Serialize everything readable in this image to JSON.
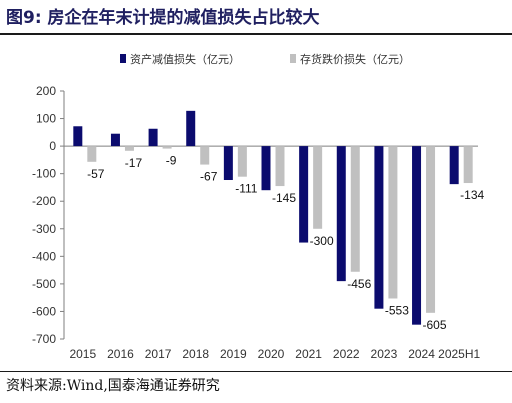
{
  "header": {
    "title": "图9:  房企在年末计提的减值损失占比较大"
  },
  "footer": {
    "source": "资料来源:Wind,国泰海通证券研究"
  },
  "chart_data": {
    "type": "bar",
    "categories": [
      "2015",
      "2016",
      "2017",
      "2018",
      "2019",
      "2020",
      "2021",
      "2022",
      "2023",
      "2024",
      "2025H1"
    ],
    "series": [
      {
        "name": "资产减值损失（亿元）",
        "color": "#0b0b6e",
        "values": [
          72,
          45,
          63,
          128,
          -123,
          -160,
          -350,
          -490,
          -590,
          -648,
          -138
        ]
      },
      {
        "name": "存货跌价损失（亿元）",
        "color": "#c0c0c0",
        "values": [
          -57,
          -17,
          -9,
          -67,
          -111,
          -145,
          -300,
          -456,
          -553,
          -605,
          -134
        ]
      }
    ],
    "data_labels": {
      "series": "存货跌价损失（亿元）",
      "values": [
        "-57",
        "-17",
        "-9",
        "-67",
        "-111",
        "-145",
        "-300",
        "-456",
        "-553",
        "-605",
        "-134"
      ]
    },
    "y_ticks": [
      "200",
      "100",
      "0",
      "-100",
      "-200",
      "-300",
      "-400",
      "-500",
      "-600",
      "-700"
    ],
    "ylim": [
      -700,
      200
    ],
    "xlabel": "",
    "ylabel": "",
    "grid": false,
    "legend_position": "top"
  }
}
